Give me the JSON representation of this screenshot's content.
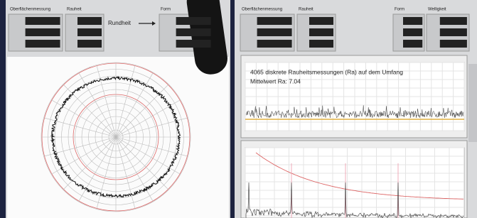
{
  "left_panel": {
    "header": {
      "measurement_title": "Oberflächenmessung",
      "roughness_title": "Rauheit",
      "mode_label": "Rundheit",
      "form_title": "Form"
    }
  },
  "right_panel": {
    "header": {
      "measurement_title": "Oberflächenmessung",
      "roughness_title": "Rauheit",
      "form_title": "Form",
      "waviness_title": "Welligkeit"
    },
    "roughness_chart": {
      "annotation_line1": "4065 diskrete Rauheitsmessungen (Ra) auf dem Umfang",
      "annotation_line2": "Mittelwert Ra: 7.04"
    }
  }
}
